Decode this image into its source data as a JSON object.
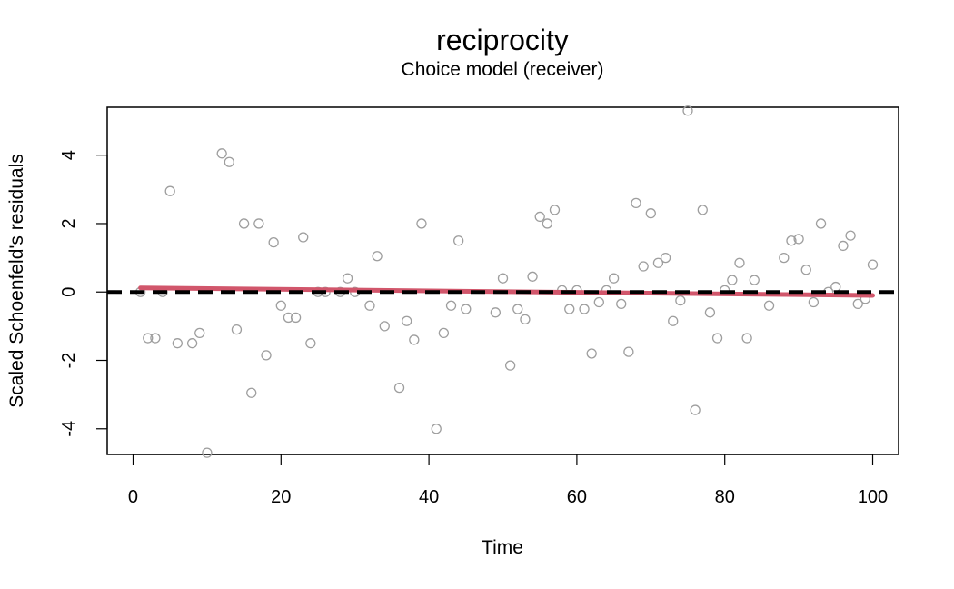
{
  "chart_data": {
    "type": "scatter",
    "title": "reciprocity",
    "subtitle": "Choice model (receiver)",
    "xlabel": "Time",
    "ylabel": "Scaled Schoenfeld's residuals",
    "xlim": [
      -3.5,
      103.5
    ],
    "ylim": [
      -4.75,
      5.4
    ],
    "xticks": [
      0,
      20,
      40,
      60,
      80,
      100
    ],
    "yticks": [
      -4,
      -2,
      0,
      2,
      4
    ],
    "grid": false,
    "legend": "none",
    "colors": {
      "points": "#9e9e9e",
      "smooth": "#d1566b",
      "reference": "#000000"
    },
    "points": [
      [
        1,
        0.0
      ],
      [
        2,
        -1.35
      ],
      [
        3,
        -1.35
      ],
      [
        4,
        0.0
      ],
      [
        5,
        2.95
      ],
      [
        6,
        -1.5
      ],
      [
        8,
        -1.5
      ],
      [
        9,
        -1.2
      ],
      [
        10,
        -4.7
      ],
      [
        12,
        4.05
      ],
      [
        13,
        3.8
      ],
      [
        14,
        -1.1
      ],
      [
        15,
        2.0
      ],
      [
        16,
        -2.95
      ],
      [
        17,
        2.0
      ],
      [
        18,
        -1.85
      ],
      [
        19,
        1.45
      ],
      [
        20,
        -0.4
      ],
      [
        21,
        -0.75
      ],
      [
        22,
        -0.75
      ],
      [
        23,
        1.6
      ],
      [
        24,
        -1.5
      ],
      [
        25,
        0.0
      ],
      [
        26,
        0.0
      ],
      [
        28,
        0.0
      ],
      [
        29,
        0.4
      ],
      [
        30,
        0.0
      ],
      [
        32,
        -0.4
      ],
      [
        33,
        1.05
      ],
      [
        34,
        -1.0
      ],
      [
        36,
        -2.8
      ],
      [
        37,
        -0.85
      ],
      [
        38,
        -1.4
      ],
      [
        39,
        2.0
      ],
      [
        41,
        -4.0
      ],
      [
        42,
        -1.2
      ],
      [
        43,
        -0.4
      ],
      [
        44,
        1.5
      ],
      [
        45,
        -0.5
      ],
      [
        49,
        -0.6
      ],
      [
        50,
        0.4
      ],
      [
        51,
        -2.15
      ],
      [
        52,
        -0.5
      ],
      [
        53,
        -0.8
      ],
      [
        54,
        0.45
      ],
      [
        55,
        2.2
      ],
      [
        56,
        2.0
      ],
      [
        57,
        2.4
      ],
      [
        58,
        0.05
      ],
      [
        59,
        -0.5
      ],
      [
        60,
        0.05
      ],
      [
        61,
        -0.5
      ],
      [
        62,
        -1.8
      ],
      [
        63,
        -0.3
      ],
      [
        64,
        0.05
      ],
      [
        65,
        0.4
      ],
      [
        66,
        -0.35
      ],
      [
        67,
        -1.75
      ],
      [
        68,
        2.6
      ],
      [
        69,
        0.75
      ],
      [
        70,
        2.3
      ],
      [
        71,
        0.85
      ],
      [
        72,
        1.0
      ],
      [
        73,
        -0.85
      ],
      [
        74,
        -0.25
      ],
      [
        75,
        5.3
      ],
      [
        76,
        -3.45
      ],
      [
        77,
        2.4
      ],
      [
        78,
        -0.6
      ],
      [
        79,
        -1.35
      ],
      [
        80,
        0.05
      ],
      [
        81,
        0.35
      ],
      [
        82,
        0.85
      ],
      [
        83,
        -1.35
      ],
      [
        84,
        0.35
      ],
      [
        86,
        -0.4
      ],
      [
        88,
        1.0
      ],
      [
        89,
        1.5
      ],
      [
        90,
        1.55
      ],
      [
        91,
        0.65
      ],
      [
        92,
        -0.3
      ],
      [
        93,
        2.0
      ],
      [
        94,
        0.0
      ],
      [
        95,
        0.15
      ],
      [
        96,
        1.35
      ],
      [
        97,
        1.65
      ],
      [
        98,
        -0.35
      ],
      [
        99,
        -0.2
      ],
      [
        100,
        0.8
      ]
    ],
    "smooth_line": {
      "x": [
        1,
        100
      ],
      "y": [
        0.12,
        -0.1
      ]
    },
    "reference_line": {
      "y": 0,
      "style": "dashed"
    }
  }
}
